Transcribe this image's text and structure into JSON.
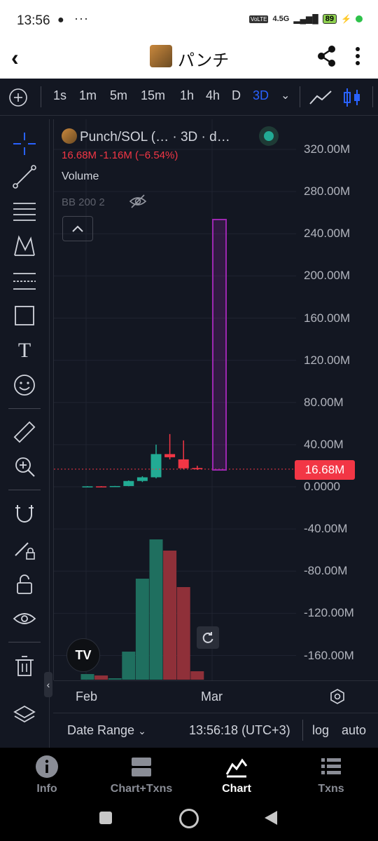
{
  "status_bar": {
    "time": "13:56",
    "network": "4.5G",
    "battery": "89"
  },
  "header": {
    "title": "パンチ"
  },
  "toolbar": {
    "intervals": [
      "1s",
      "1m",
      "5m",
      "15m",
      "1h",
      "4h",
      "D",
      "3D"
    ],
    "active_interval": "3D"
  },
  "chart": {
    "symbol_line": "Punch/SOL (… · 3D · d…",
    "price_line": "16.68M  -1.16M (−6.54%)",
    "volume_label": "Volume",
    "bb_label": "BB 200 2",
    "price_tag": "16.68M",
    "x_labels": [
      "Feb",
      "Mar"
    ]
  },
  "chart_data": {
    "type": "candlestick",
    "y_ticks": [
      "320.00M",
      "280.00M",
      "240.00M",
      "200.00M",
      "160.00M",
      "120.00M",
      "80.00M",
      "40.00M",
      "0.0000",
      "-40.00M",
      "-80.00M",
      "-120.00M",
      "-160.00M"
    ],
    "ylim": [
      -160,
      320
    ],
    "y_unit": "M",
    "last_price": 16.68,
    "candles": [
      {
        "o": 0.3,
        "h": 0.6,
        "l": 0.2,
        "c": 0.4,
        "dir": "up"
      },
      {
        "o": 0.4,
        "h": 0.6,
        "l": 0.2,
        "c": 0.3,
        "dir": "down"
      },
      {
        "o": 0.3,
        "h": 0.8,
        "l": 0.2,
        "c": 0.7,
        "dir": "up"
      },
      {
        "o": 0.7,
        "h": 6.0,
        "l": 0.5,
        "c": 5.5,
        "dir": "up"
      },
      {
        "o": 5.5,
        "h": 10.0,
        "l": 4.5,
        "c": 9.0,
        "dir": "up"
      },
      {
        "o": 9.0,
        "h": 40.0,
        "l": 8.0,
        "c": 31.0,
        "dir": "up"
      },
      {
        "o": 31.0,
        "h": 50.0,
        "l": 26.0,
        "c": 28.0,
        "dir": "down"
      },
      {
        "o": 26.0,
        "h": 44.0,
        "l": 16.5,
        "c": 17.5,
        "dir": "down"
      },
      {
        "o": 17.8,
        "h": 20.0,
        "l": 16.0,
        "c": 16.7,
        "dir": "down"
      }
    ],
    "volume": [
      {
        "v": 4,
        "dir": "up"
      },
      {
        "v": 3,
        "dir": "down"
      },
      {
        "v": 1,
        "dir": "up"
      },
      {
        "v": 20,
        "dir": "up"
      },
      {
        "v": 72,
        "dir": "up"
      },
      {
        "v": 100,
        "dir": "up"
      },
      {
        "v": 92,
        "dir": "down"
      },
      {
        "v": 66,
        "dir": "down"
      },
      {
        "v": 6,
        "dir": "down"
      }
    ]
  },
  "bottom_bar": {
    "date_range": "Date Range",
    "clock": "13:56:18 (UTC+3)",
    "log": "log",
    "auto": "auto"
  },
  "nav": {
    "items": [
      {
        "label": "Info",
        "icon": "info-icon"
      },
      {
        "label": "Chart+Txns",
        "icon": "chart-txns-icon"
      },
      {
        "label": "Chart",
        "icon": "chart-icon"
      },
      {
        "label": "Txns",
        "icon": "list-icon"
      }
    ],
    "active": "Chart"
  },
  "colors": {
    "up": "#22ab94",
    "down": "#f23645",
    "accent": "#2962ff",
    "highlight": "#9c27b0"
  }
}
